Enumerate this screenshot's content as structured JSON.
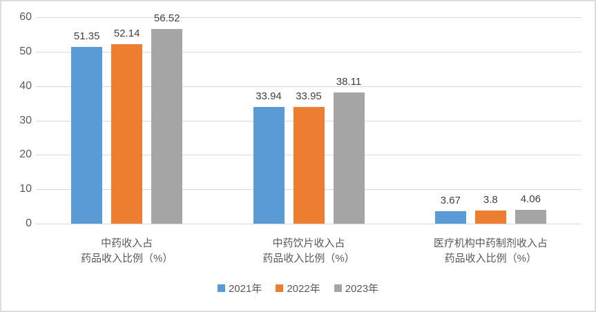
{
  "chart_data": {
    "type": "bar",
    "title": "",
    "categories": [
      "中药收入占\n药品收入比例（%）",
      "中药饮片收入占\n药品收入比例（%）",
      "医疗机构中药制剂收入占\n药品收入比例（%）"
    ],
    "series": [
      {
        "name": "2021年",
        "color": "#5B9BD5",
        "values": [
          51.35,
          33.94,
          3.67
        ]
      },
      {
        "name": "2022年",
        "color": "#ED7D31",
        "values": [
          52.14,
          33.95,
          3.8
        ]
      },
      {
        "name": "2023年",
        "color": "#A5A5A5",
        "values": [
          56.52,
          38.11,
          4.06
        ]
      }
    ],
    "xlabel": "",
    "ylabel": "",
    "ylim": [
      0,
      60
    ],
    "yticks": [
      0,
      10,
      20,
      30,
      40,
      50,
      60
    ],
    "grid": true,
    "data_labels": true,
    "legend_position": "bottom",
    "grid_color": "#D9D9D9",
    "axis_text_color": "#595959",
    "data_label_color": "#404040",
    "background_color": "#FFFFFF",
    "border_color": "#DCDCDC"
  }
}
